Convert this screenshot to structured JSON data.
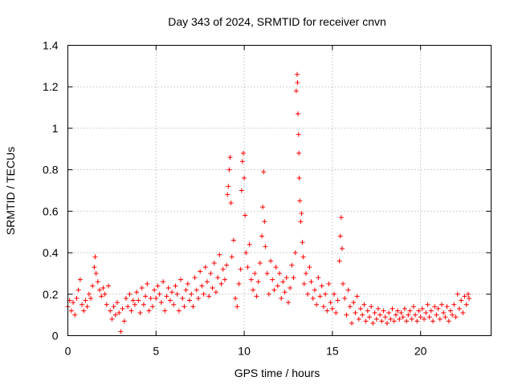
{
  "chart_data": {
    "type": "scatter",
    "title": "Day 343 of 2024, SRMTID for receiver cnvn",
    "xlabel": "GPS time / hours",
    "ylabel": "SRMTID / TECUs",
    "xlim": [
      0,
      24
    ],
    "ylim": [
      0,
      1.4
    ],
    "x_ticks": [
      0,
      5,
      10,
      15,
      20
    ],
    "x_tick_labels": [
      "0",
      "5",
      "10",
      "15",
      "20"
    ],
    "y_ticks": [
      0,
      0.2,
      0.4,
      0.6,
      0.8,
      1.0,
      1.2,
      1.4
    ],
    "y_tick_labels": [
      "0",
      "0.2",
      "0.4",
      "0.6",
      "0.8",
      "1",
      "1.2",
      "1.4"
    ],
    "grid": true,
    "marker": "+",
    "series": [
      {
        "name": "SRMTID",
        "color": "#ff0000",
        "points": [
          [
            0.0,
            0.14
          ],
          [
            0.1,
            0.17
          ],
          [
            0.2,
            0.12
          ],
          [
            0.3,
            0.16
          ],
          [
            0.4,
            0.1
          ],
          [
            0.5,
            0.18
          ],
          [
            0.6,
            0.22
          ],
          [
            0.7,
            0.27
          ],
          [
            0.8,
            0.15
          ],
          [
            0.9,
            0.12
          ],
          [
            1.0,
            0.17
          ],
          [
            1.1,
            0.14
          ],
          [
            1.2,
            0.2
          ],
          [
            1.3,
            0.18
          ],
          [
            1.4,
            0.24
          ],
          [
            1.5,
            0.33
          ],
          [
            1.55,
            0.38
          ],
          [
            1.6,
            0.3
          ],
          [
            1.7,
            0.26
          ],
          [
            1.8,
            0.22
          ],
          [
            1.9,
            0.19
          ],
          [
            2.0,
            0.23
          ],
          [
            2.1,
            0.2
          ],
          [
            2.2,
            0.15
          ],
          [
            2.3,
            0.24
          ],
          [
            2.4,
            0.12
          ],
          [
            2.5,
            0.08
          ],
          [
            2.6,
            0.14
          ],
          [
            2.7,
            0.1
          ],
          [
            2.8,
            0.16
          ],
          [
            2.9,
            0.11
          ],
          [
            3.0,
            0.02
          ],
          [
            3.1,
            0.13
          ],
          [
            3.2,
            0.07
          ],
          [
            3.3,
            0.18
          ],
          [
            3.4,
            0.14
          ],
          [
            3.5,
            0.2
          ],
          [
            3.6,
            0.12
          ],
          [
            3.7,
            0.17
          ],
          [
            3.8,
            0.15
          ],
          [
            3.9,
            0.21
          ],
          [
            4.0,
            0.17
          ],
          [
            4.1,
            0.11
          ],
          [
            4.2,
            0.23
          ],
          [
            4.3,
            0.15
          ],
          [
            4.4,
            0.19
          ],
          [
            4.5,
            0.25
          ],
          [
            4.6,
            0.12
          ],
          [
            4.7,
            0.18
          ],
          [
            4.8,
            0.14
          ],
          [
            4.9,
            0.22
          ],
          [
            5.0,
            0.18
          ],
          [
            5.1,
            0.24
          ],
          [
            5.2,
            0.2
          ],
          [
            5.3,
            0.16
          ],
          [
            5.4,
            0.26
          ],
          [
            5.5,
            0.12
          ],
          [
            5.6,
            0.19
          ],
          [
            5.7,
            0.23
          ],
          [
            5.8,
            0.17
          ],
          [
            5.9,
            0.21
          ],
          [
            6.0,
            0.15
          ],
          [
            6.1,
            0.24
          ],
          [
            6.2,
            0.2
          ],
          [
            6.3,
            0.12
          ],
          [
            6.4,
            0.27
          ],
          [
            6.5,
            0.18
          ],
          [
            6.6,
            0.14
          ],
          [
            6.7,
            0.22
          ],
          [
            6.8,
            0.25
          ],
          [
            6.9,
            0.17
          ],
          [
            7.0,
            0.2
          ],
          [
            7.1,
            0.14
          ],
          [
            7.2,
            0.28
          ],
          [
            7.3,
            0.22
          ],
          [
            7.4,
            0.18
          ],
          [
            7.5,
            0.31
          ],
          [
            7.6,
            0.24
          ],
          [
            7.7,
            0.2
          ],
          [
            7.8,
            0.33
          ],
          [
            7.9,
            0.26
          ],
          [
            8.0,
            0.19
          ],
          [
            8.1,
            0.3
          ],
          [
            8.2,
            0.23
          ],
          [
            8.3,
            0.35
          ],
          [
            8.4,
            0.21
          ],
          [
            8.5,
            0.28
          ],
          [
            8.6,
            0.39
          ],
          [
            8.7,
            0.25
          ],
          [
            8.8,
            0.32
          ],
          [
            8.9,
            0.27
          ],
          [
            9.0,
            0.34
          ],
          [
            9.05,
            0.68
          ],
          [
            9.1,
            0.72
          ],
          [
            9.15,
            0.8
          ],
          [
            9.2,
            0.86
          ],
          [
            9.25,
            0.64
          ],
          [
            9.3,
            0.38
          ],
          [
            9.4,
            0.46
          ],
          [
            9.5,
            0.18
          ],
          [
            9.6,
            0.14
          ],
          [
            9.7,
            0.25
          ],
          [
            9.8,
            0.32
          ],
          [
            9.85,
            0.7
          ],
          [
            9.9,
            0.84
          ],
          [
            9.95,
            0.88
          ],
          [
            10.0,
            0.76
          ],
          [
            10.05,
            0.58
          ],
          [
            10.1,
            0.4
          ],
          [
            10.2,
            0.33
          ],
          [
            10.3,
            0.44
          ],
          [
            10.4,
            0.27
          ],
          [
            10.5,
            0.22
          ],
          [
            10.6,
            0.3
          ],
          [
            10.7,
            0.19
          ],
          [
            10.8,
            0.26
          ],
          [
            10.9,
            0.35
          ],
          [
            11.0,
            0.48
          ],
          [
            11.05,
            0.62
          ],
          [
            11.1,
            0.79
          ],
          [
            11.15,
            0.55
          ],
          [
            11.2,
            0.43
          ],
          [
            11.3,
            0.3
          ],
          [
            11.4,
            0.2
          ],
          [
            11.5,
            0.36
          ],
          [
            11.6,
            0.27
          ],
          [
            11.7,
            0.22
          ],
          [
            11.8,
            0.33
          ],
          [
            11.9,
            0.24
          ],
          [
            12.0,
            0.3
          ],
          [
            12.1,
            0.18
          ],
          [
            12.2,
            0.26
          ],
          [
            12.3,
            0.21
          ],
          [
            12.4,
            0.28
          ],
          [
            12.5,
            0.16
          ],
          [
            12.6,
            0.23
          ],
          [
            12.7,
            0.34
          ],
          [
            12.8,
            0.28
          ],
          [
            12.9,
            0.4
          ],
          [
            12.95,
            1.18
          ],
          [
            13.0,
            1.26
          ],
          [
            13.02,
            1.22
          ],
          [
            13.05,
            1.07
          ],
          [
            13.08,
            0.97
          ],
          [
            13.1,
            0.88
          ],
          [
            13.12,
            0.76
          ],
          [
            13.15,
            0.65
          ],
          [
            13.2,
            0.55
          ],
          [
            13.25,
            0.59
          ],
          [
            13.3,
            0.45
          ],
          [
            13.35,
            0.38
          ],
          [
            13.4,
            0.25
          ],
          [
            13.5,
            0.3
          ],
          [
            13.6,
            0.2
          ],
          [
            13.7,
            0.33
          ],
          [
            13.8,
            0.26
          ],
          [
            13.9,
            0.18
          ],
          [
            14.0,
            0.22
          ],
          [
            14.1,
            0.15
          ],
          [
            14.2,
            0.28
          ],
          [
            14.3,
            0.19
          ],
          [
            14.4,
            0.24
          ],
          [
            14.5,
            0.14
          ],
          [
            14.6,
            0.2
          ],
          [
            14.7,
            0.12
          ],
          [
            14.8,
            0.25
          ],
          [
            14.9,
            0.16
          ],
          [
            15.0,
            0.13
          ],
          [
            15.1,
            0.2
          ],
          [
            15.2,
            0.11
          ],
          [
            15.3,
            0.17
          ],
          [
            15.4,
            0.36
          ],
          [
            15.45,
            0.48
          ],
          [
            15.5,
            0.57
          ],
          [
            15.55,
            0.42
          ],
          [
            15.6,
            0.25
          ],
          [
            15.7,
            0.18
          ],
          [
            15.8,
            0.1
          ],
          [
            15.9,
            0.22
          ],
          [
            16.0,
            0.14
          ],
          [
            16.1,
            0.06
          ],
          [
            16.2,
            0.16
          ],
          [
            16.3,
            0.11
          ],
          [
            16.4,
            0.19
          ],
          [
            16.5,
            0.08
          ],
          [
            16.6,
            0.13
          ],
          [
            16.7,
            0.1
          ],
          [
            16.8,
            0.15
          ],
          [
            16.9,
            0.07
          ],
          [
            17.0,
            0.12
          ],
          [
            17.1,
            0.09
          ],
          [
            17.2,
            0.14
          ],
          [
            17.3,
            0.06
          ],
          [
            17.4,
            0.11
          ],
          [
            17.5,
            0.08
          ],
          [
            17.6,
            0.13
          ],
          [
            17.7,
            0.1
          ],
          [
            17.8,
            0.07
          ],
          [
            17.9,
            0.12
          ],
          [
            18.0,
            0.09
          ],
          [
            18.1,
            0.06
          ],
          [
            18.2,
            0.11
          ],
          [
            18.3,
            0.08
          ],
          [
            18.4,
            0.13
          ],
          [
            18.5,
            0.07
          ],
          [
            18.6,
            0.1
          ],
          [
            18.7,
            0.12
          ],
          [
            18.8,
            0.08
          ],
          [
            18.9,
            0.11
          ],
          [
            19.0,
            0.09
          ],
          [
            19.1,
            0.13
          ],
          [
            19.2,
            0.07
          ],
          [
            19.3,
            0.1
          ],
          [
            19.4,
            0.12
          ],
          [
            19.5,
            0.08
          ],
          [
            19.6,
            0.14
          ],
          [
            19.7,
            0.1
          ],
          [
            19.8,
            0.07
          ],
          [
            19.9,
            0.12
          ],
          [
            20.0,
            0.09
          ],
          [
            20.1,
            0.13
          ],
          [
            20.2,
            0.08
          ],
          [
            20.3,
            0.11
          ],
          [
            20.4,
            0.15
          ],
          [
            20.5,
            0.09
          ],
          [
            20.6,
            0.12
          ],
          [
            20.7,
            0.07
          ],
          [
            20.8,
            0.14
          ],
          [
            20.9,
            0.1
          ],
          [
            21.0,
            0.13
          ],
          [
            21.1,
            0.08
          ],
          [
            21.2,
            0.15
          ],
          [
            21.3,
            0.11
          ],
          [
            21.4,
            0.09
          ],
          [
            21.5,
            0.14
          ],
          [
            21.6,
            0.07
          ],
          [
            21.7,
            0.12
          ],
          [
            21.8,
            0.1
          ],
          [
            21.9,
            0.15
          ],
          [
            22.0,
            0.09
          ],
          [
            22.1,
            0.2
          ],
          [
            22.2,
            0.13
          ],
          [
            22.3,
            0.17
          ],
          [
            22.4,
            0.11
          ],
          [
            22.5,
            0.19
          ],
          [
            22.6,
            0.15
          ],
          [
            22.7,
            0.2
          ],
          [
            22.75,
            0.18
          ]
        ]
      }
    ]
  }
}
